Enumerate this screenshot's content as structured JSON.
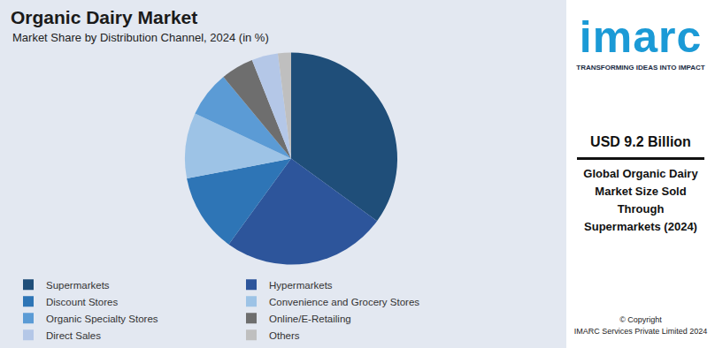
{
  "chart_data": {
    "type": "pie",
    "title": "Organic Dairy Market",
    "subtitle": "Market Share by Distribution Channel, 2024 (in %)",
    "categories": [
      "Supermarkets",
      "Hypermarkets",
      "Discount Stores",
      "Convenience and Grocery Stores",
      "Organic Specialty Stores",
      "Online/E-Retailing",
      "Direct Sales",
      "Others"
    ],
    "values": [
      35,
      25,
      12,
      10,
      7,
      5,
      4,
      2
    ],
    "colors": [
      "#1f4e79",
      "#2d559b",
      "#2e75b6",
      "#9dc3e6",
      "#5b9bd5",
      "#6e6e6e",
      "#b4c7e7",
      "#bfbfbf"
    ],
    "data_labels": false,
    "legend": "bottom"
  },
  "side_panel": {
    "logo": "imarc",
    "tagline": "TRANSFORMING IDEAS INTO IMPACT",
    "value": "USD 9.2 Billion",
    "caption": "Global Organic Dairy Market Size Sold Through Supermarkets (2024)",
    "copyright": [
      "© Copyright",
      "IMARC Services Private Limited 2024"
    ]
  }
}
